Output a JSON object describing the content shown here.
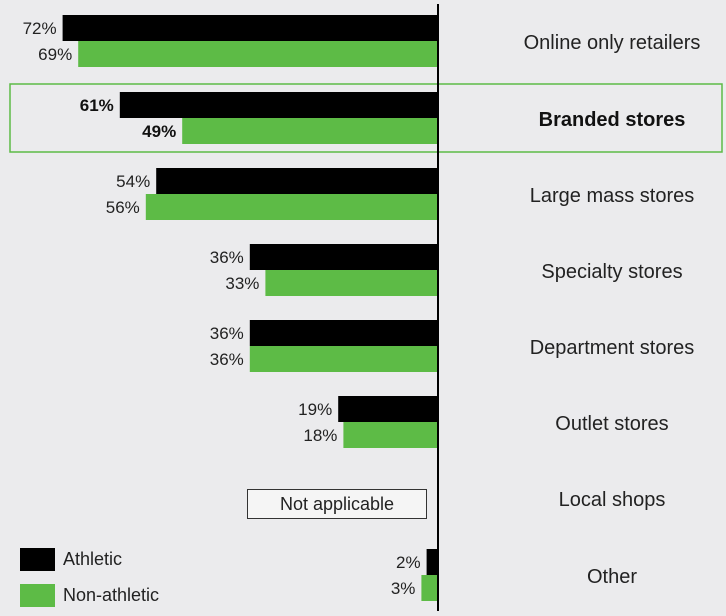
{
  "chart_data": {
    "type": "bar",
    "orientation": "horizontal",
    "categories": [
      "Online only retailers",
      "Branded stores",
      "Large mass stores",
      "Specialty stores",
      "Department stores",
      "Outlet stores",
      "Local shops",
      "Other"
    ],
    "series": [
      {
        "name": "Athletic",
        "values": [
          72,
          61,
          54,
          36,
          36,
          19,
          null,
          2
        ],
        "labels": [
          "72%",
          "61%",
          "54%",
          "36%",
          "36%",
          "19%",
          "",
          "2%"
        ]
      },
      {
        "name": "Non-athletic",
        "values": [
          69,
          49,
          56,
          33,
          36,
          18,
          null,
          3
        ],
        "labels": [
          "69%",
          "49%",
          "56%",
          "33%",
          "36%",
          "18%",
          "",
          "3%"
        ]
      }
    ],
    "highlighted_category": "Branded stores",
    "not_applicable_label": "Not applicable",
    "legend_position": "bottom-left",
    "grid": false,
    "xlim": [
      0,
      100
    ]
  },
  "legend": {
    "athletic": "Athletic",
    "non_athletic": "Non-athletic"
  },
  "colors": {
    "athletic": "#000000",
    "non_athletic": "#5dbb46",
    "highlight": "#5dbb46",
    "background": "#ebebed"
  }
}
